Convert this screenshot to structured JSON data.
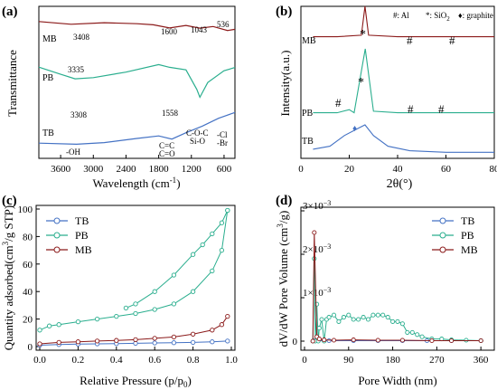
{
  "chart_data": [
    {
      "panel": "(a)",
      "type": "line",
      "xlabel": "Wavelength (cm",
      "xlabel_sup": "-1",
      "xlabel_end": ")",
      "ylabel": "Transmittance",
      "xlim": [
        4000,
        400
      ],
      "xticks": [
        3600,
        3000,
        2400,
        1800,
        1200,
        600
      ],
      "series": [
        {
          "name": "MB",
          "color": "#8B1A1A",
          "x": [
            4000,
            3408,
            2800,
            2200,
            1900,
            1600,
            1300,
            1043,
            800,
            536,
            400
          ],
          "y": [
            0.9,
            0.88,
            0.89,
            0.885,
            0.88,
            0.86,
            0.875,
            0.855,
            0.865,
            0.84,
            0.85
          ]
        },
        {
          "name": "PB",
          "color": "#2AAE8E",
          "x": [
            4000,
            3600,
            3335,
            3000,
            2400,
            1800,
            1600,
            1300,
            1100,
            1043,
            900,
            600,
            400
          ],
          "y": [
            0.6,
            0.55,
            0.52,
            0.53,
            0.57,
            0.62,
            0.6,
            0.58,
            0.45,
            0.4,
            0.5,
            0.58,
            0.6
          ]
        },
        {
          "name": "TB",
          "color": "#4472C4",
          "x": [
            4000,
            3308,
            2800,
            2200,
            1800,
            1558,
            1300,
            1000,
            700,
            400
          ],
          "y": [
            0.1,
            0.09,
            0.1,
            0.13,
            0.15,
            0.13,
            0.17,
            0.21,
            0.26,
            0.3
          ]
        }
      ],
      "annotations": [
        "3408",
        "1600",
        "1043",
        "536",
        "3335",
        "3308",
        "1558",
        "-OH",
        "C=C",
        "C=O",
        "C-O-C",
        "Si-O",
        "-Cl",
        "-Br"
      ]
    },
    {
      "panel": "(b)",
      "type": "line",
      "xlabel": "2θ(°)",
      "ylabel": "Intensity(a.u.)",
      "xlim": [
        0,
        80
      ],
      "xticks": [
        0,
        20,
        40,
        60,
        80
      ],
      "legend": [
        {
          "symbol": "#",
          "label": "Al"
        },
        {
          "symbol": "*",
          "label": "SiO",
          "sub": "2"
        },
        {
          "symbol": "♦",
          "label": "graphite"
        }
      ],
      "series": [
        {
          "name": "MB",
          "color": "#8B1A1A",
          "x": [
            5,
            15,
            25,
            26.5,
            28,
            40,
            50,
            65,
            80
          ],
          "y": [
            0.8,
            0.8,
            0.81,
            1.0,
            0.81,
            0.8,
            0.8,
            0.8,
            0.8
          ]
        },
        {
          "name": "PB",
          "color": "#2AAE8E",
          "x": [
            5,
            15,
            20,
            22,
            26.6,
            30,
            40,
            50,
            60,
            80
          ],
          "y": [
            0.3,
            0.3,
            0.32,
            0.3,
            0.72,
            0.31,
            0.3,
            0.3,
            0.3,
            0.3
          ]
        },
        {
          "name": "TB",
          "color": "#4472C4",
          "x": [
            5,
            12,
            18,
            24,
            26.5,
            30,
            36,
            45,
            60,
            80
          ],
          "y": [
            0.06,
            0.08,
            0.15,
            0.2,
            0.22,
            0.15,
            0.08,
            0.05,
            0.04,
            0.04
          ]
        }
      ],
      "markers": [
        "*",
        "#",
        "#",
        "*",
        "#",
        "#",
        "#",
        "♦"
      ]
    },
    {
      "panel": "(c)",
      "type": "line",
      "xlabel": "Relative Pressure (p/p",
      "xlabel_sub": "0",
      "xlabel_end": ")",
      "ylabel": "Quantity adsorbed(cm",
      "ylabel_sup": "3",
      "ylabel_end": "/g STP)",
      "xlim": [
        0,
        1
      ],
      "ylim": [
        0,
        100
      ],
      "xticks": [
        "0.0",
        "0.2",
        "0.4",
        "0.6",
        "0.8",
        "1.0"
      ],
      "yticks": [
        "0",
        "20",
        "40",
        "60",
        "80",
        "100"
      ],
      "legend_position": "top-left",
      "series": [
        {
          "name": "TB",
          "color": "#4472C4",
          "x": [
            0.0,
            0.1,
            0.2,
            0.3,
            0.4,
            0.5,
            0.6,
            0.7,
            0.8,
            0.9,
            0.98
          ],
          "y": [
            1.0,
            1.5,
            1.8,
            2.0,
            2.2,
            2.4,
            2.6,
            2.8,
            3.0,
            3.5,
            4.0
          ]
        },
        {
          "name": "PB",
          "color": "#2AAE8E",
          "x": [
            0.0,
            0.05,
            0.1,
            0.2,
            0.3,
            0.4,
            0.5,
            0.6,
            0.7,
            0.8,
            0.9,
            0.95,
            0.98
          ],
          "y": [
            12,
            15,
            16,
            18,
            20,
            22,
            24,
            27,
            31,
            40,
            55,
            70,
            99
          ]
        },
        {
          "name": "PB-desorption",
          "color": "#2AAE8E",
          "x": [
            0.98,
            0.95,
            0.9,
            0.85,
            0.8,
            0.7,
            0.6,
            0.5,
            0.45
          ],
          "y": [
            99,
            90,
            82,
            74,
            67,
            52,
            40,
            31,
            28
          ]
        },
        {
          "name": "MB",
          "color": "#8B1A1A",
          "x": [
            0.0,
            0.1,
            0.2,
            0.3,
            0.4,
            0.5,
            0.6,
            0.7,
            0.8,
            0.9,
            0.95,
            0.98
          ],
          "y": [
            2,
            3,
            3.5,
            4,
            4.5,
            5,
            6,
            7,
            9,
            12,
            16,
            22
          ]
        }
      ]
    },
    {
      "panel": "(d)",
      "type": "line",
      "xlabel": "Pore Width (nm)",
      "ylabel": "dV/dW Pore Volume (cm",
      "ylabel_sup": "3",
      "ylabel_end": "/g)",
      "xlim": [
        0,
        380
      ],
      "xticks": [
        "0",
        "90",
        "180",
        "270",
        "360"
      ],
      "ylim": [
        0,
        0.003
      ],
      "yticks": [
        {
          "label": "0",
          "value": 0
        },
        {
          "label": "1×10",
          "sup": "−3",
          "value": 0.001
        },
        {
          "label": "2×10",
          "sup": "−3",
          "value": 0.002
        },
        {
          "label": "3×10",
          "sup": "−3",
          "value": 0.003
        }
      ],
      "legend_position": "top-right",
      "series": [
        {
          "name": "TB",
          "color": "#4472C4",
          "x": [
            20,
            50,
            100,
            150,
            200,
            250,
            300,
            360
          ],
          "y": [
            1e-05,
            1e-05,
            1e-05,
            1e-05,
            1e-05,
            1e-05,
            1e-05,
            1e-05
          ]
        },
        {
          "name": "PB",
          "color": "#2AAE8E",
          "x": [
            17,
            20,
            22,
            25,
            28,
            30,
            35,
            40,
            45,
            50,
            60,
            70,
            80,
            90,
            100,
            110,
            120,
            130,
            140,
            150,
            160,
            170,
            180,
            190,
            200,
            210,
            220,
            230,
            240,
            260,
            280,
            300,
            330,
            360
          ],
          "y": [
            0.0,
            0.0019,
            0.0,
            0.00085,
            0.0,
            0.0003,
            0.0005,
            0.0,
            0.0005,
            0.00055,
            0.0006,
            0.00045,
            0.00055,
            0.0006,
            0.0005,
            0.0005,
            0.00055,
            0.0005,
            0.0006,
            0.0006,
            0.0006,
            0.00055,
            0.00045,
            0.00045,
            0.0004,
            0.0002,
            0.0002,
            0.00015,
            0.0001,
            5e-05,
            5e-05,
            3e-05,
            2e-05,
            1e-05
          ]
        },
        {
          "name": "MB",
          "color": "#8B1A1A",
          "x": [
            17,
            20,
            25,
            30,
            40,
            60,
            100,
            150,
            200,
            260,
            300,
            360
          ],
          "y": [
            0.0,
            0.0025,
            0.0001,
            5e-05,
            3e-05,
            2e-05,
            3e-05,
            2e-05,
            2e-05,
            1e-05,
            1e-05,
            1e-05
          ]
        }
      ]
    }
  ]
}
